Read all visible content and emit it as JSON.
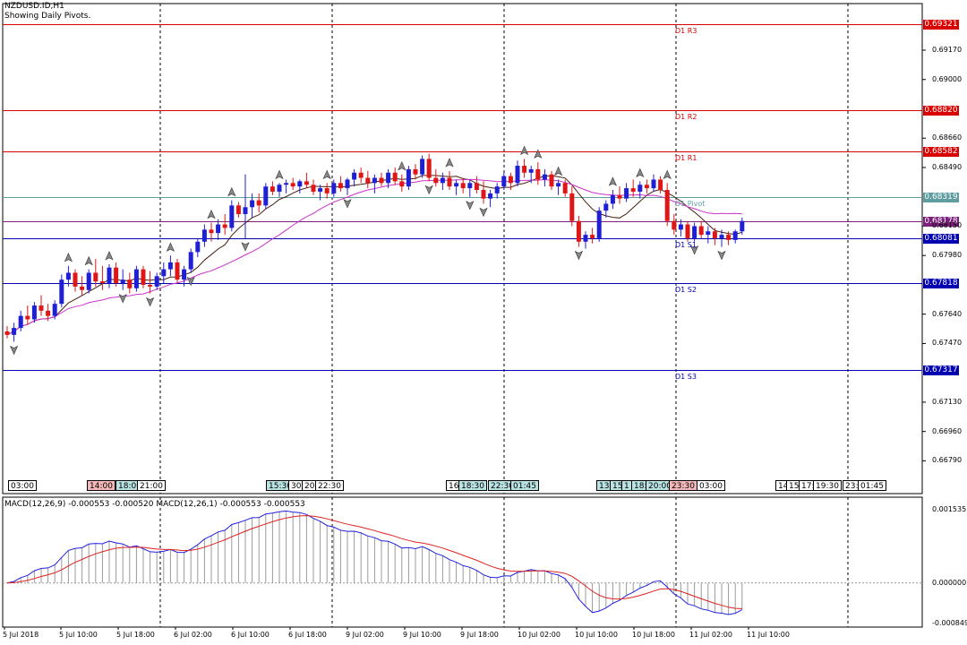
{
  "window": {
    "symbol": "NZDUSD.ID,H1",
    "subtitle": "Showing Daily Pivots."
  },
  "colors": {
    "bull": "#1f1fd6",
    "bear": "#e01515",
    "resistance": "#d90000",
    "support": "#0000b0",
    "pivot": "#5f9ea0",
    "ma_fast": "#4a2010",
    "ma_slow": "#cc33cc",
    "macd_line": "#2222dd",
    "signal_line": "#dd2222"
  },
  "pivots": [
    {
      "name": "D1 R3",
      "value": "0.69321",
      "price": 0.69321,
      "kind": "resistance"
    },
    {
      "name": "D1 R2",
      "value": "0.68820",
      "price": 0.6882,
      "kind": "resistance"
    },
    {
      "name": "D1 R1",
      "value": "0.68582",
      "price": 0.68582,
      "kind": "resistance"
    },
    {
      "name": "D1 Pivot",
      "value": "0.68319",
      "price": 0.68319,
      "kind": "pivot"
    },
    {
      "name": "",
      "value": "0.68178",
      "price": 0.68178,
      "kind": "current"
    },
    {
      "name": "D1 S1",
      "value": "0.68081",
      "price": 0.68081,
      "kind": "support"
    },
    {
      "name": "D1 S2",
      "value": "0.67818",
      "price": 0.67818,
      "kind": "support"
    },
    {
      "name": "D1 S3",
      "value": "0.67317",
      "price": 0.67317,
      "kind": "support"
    }
  ],
  "price_axis": [
    "0.69170",
    "0.69000",
    "0.68660",
    "0.68490",
    "0.68150",
    "0.67980",
    "0.67640",
    "0.67470",
    "0.67130",
    "0.66960",
    "0.66790"
  ],
  "time_boxes": [
    {
      "text": "03:00",
      "style": "white"
    },
    {
      "text": "14:00",
      "style": "red"
    },
    {
      "text": "18:00",
      "style": "cyan"
    },
    {
      "text": "21:00",
      "style": "white"
    },
    {
      "text": "15:30",
      "style": "cyan"
    },
    {
      "text": "30",
      "style": "white"
    },
    {
      "text": "20:",
      "style": "white"
    },
    {
      "text": "22:30",
      "style": "white"
    },
    {
      "text": "16:",
      "style": "white"
    },
    {
      "text": "18:30",
      "style": "cyan"
    },
    {
      "text": "22:30",
      "style": "cyan"
    },
    {
      "text": "01:45",
      "style": "cyan"
    },
    {
      "text": "13:",
      "style": "cyan"
    },
    {
      "text": "15:",
      "style": "cyan"
    },
    {
      "text": "1",
      "style": "cyan"
    },
    {
      "text": "18:",
      "style": "cyan"
    },
    {
      "text": "20:00",
      "style": "cyan"
    },
    {
      "text": "23:30",
      "style": "red"
    },
    {
      "text": "03:00",
      "style": "white"
    },
    {
      "text": "14",
      "style": "white"
    },
    {
      "text": "15",
      "style": "white"
    },
    {
      "text": "17:",
      "style": "white"
    },
    {
      "text": "19:30",
      "style": "white"
    },
    {
      "text": "23:",
      "style": "white"
    },
    {
      "text": "01:45",
      "style": "white"
    }
  ],
  "macd": {
    "label": "MACD(12,26,9) -0.000553 -0.000520 MACD(12,26,1) -0.000553 -0.000553",
    "axis": [
      "0.001535",
      "0.000000",
      "-0.000849"
    ]
  },
  "x_axis": [
    "5 Jul 2018",
    "5 Jul 10:00",
    "5 Jul 18:00",
    "6 Jul 02:00",
    "6 Jul 10:00",
    "6 Jul 18:00",
    "9 Jul 02:00",
    "9 Jul 10:00",
    "9 Jul 18:00",
    "10 Jul 02:00",
    "10 Jul 10:00",
    "10 Jul 18:00",
    "11 Jul 02:00",
    "11 Jul 10:00"
  ],
  "chart_data": {
    "type": "candlestick",
    "timeframe": "H1",
    "candles": [
      [
        0.6754,
        0.6757,
        0.675,
        0.6752
      ],
      [
        0.6752,
        0.6759,
        0.6748,
        0.6756
      ],
      [
        0.6756,
        0.6766,
        0.6754,
        0.6763
      ],
      [
        0.6763,
        0.6769,
        0.6758,
        0.6761
      ],
      [
        0.6761,
        0.6771,
        0.6759,
        0.6769
      ],
      [
        0.6769,
        0.6775,
        0.6763,
        0.6766
      ],
      [
        0.6766,
        0.677,
        0.676,
        0.6763
      ],
      [
        0.6763,
        0.6772,
        0.6761,
        0.677
      ],
      [
        0.677,
        0.6787,
        0.6768,
        0.6784
      ],
      [
        0.6784,
        0.6792,
        0.678,
        0.6788
      ],
      [
        0.6788,
        0.679,
        0.6777,
        0.678
      ],
      [
        0.678,
        0.6786,
        0.6775,
        0.6778
      ],
      [
        0.6778,
        0.679,
        0.6776,
        0.6788
      ],
      [
        0.6788,
        0.6796,
        0.678,
        0.6783
      ],
      [
        0.6783,
        0.6792,
        0.6778,
        0.6782
      ],
      [
        0.6782,
        0.6793,
        0.6779,
        0.6791
      ],
      [
        0.6791,
        0.6794,
        0.678,
        0.6782
      ],
      [
        0.6782,
        0.679,
        0.6778,
        0.6784
      ],
      [
        0.6784,
        0.6788,
        0.6776,
        0.6779
      ],
      [
        0.6779,
        0.6792,
        0.6777,
        0.679
      ],
      [
        0.679,
        0.6792,
        0.6779,
        0.6781
      ],
      [
        0.6781,
        0.6789,
        0.6776,
        0.678
      ],
      [
        0.678,
        0.6788,
        0.6778,
        0.6786
      ],
      [
        0.6786,
        0.6794,
        0.6782,
        0.679
      ],
      [
        0.679,
        0.6798,
        0.6786,
        0.6794
      ],
      [
        0.6794,
        0.6796,
        0.6782,
        0.6784
      ],
      [
        0.6784,
        0.6792,
        0.678,
        0.679
      ],
      [
        0.679,
        0.6802,
        0.6788,
        0.68
      ],
      [
        0.68,
        0.6808,
        0.6797,
        0.6806
      ],
      [
        0.6806,
        0.6816,
        0.6803,
        0.6813
      ],
      [
        0.6813,
        0.6817,
        0.6806,
        0.6811
      ],
      [
        0.6811,
        0.6819,
        0.6807,
        0.6816
      ],
      [
        0.6816,
        0.6822,
        0.681,
        0.6814
      ],
      [
        0.6814,
        0.683,
        0.6812,
        0.6827
      ],
      [
        0.6827,
        0.6829,
        0.682,
        0.6822
      ],
      [
        0.6822,
        0.6845,
        0.6808,
        0.6826
      ],
      [
        0.6826,
        0.6834,
        0.682,
        0.683
      ],
      [
        0.683,
        0.6834,
        0.6823,
        0.6827
      ],
      [
        0.6827,
        0.684,
        0.6825,
        0.6838
      ],
      [
        0.6838,
        0.6841,
        0.6833,
        0.6835
      ],
      [
        0.6835,
        0.684,
        0.6832,
        0.6839
      ],
      [
        0.6839,
        0.6842,
        0.6834,
        0.684
      ],
      [
        0.684,
        0.6843,
        0.6836,
        0.6838
      ],
      [
        0.6838,
        0.6842,
        0.6834,
        0.6841
      ],
      [
        0.6841,
        0.6846,
        0.6837,
        0.6839
      ],
      [
        0.6839,
        0.6842,
        0.6833,
        0.6835
      ],
      [
        0.6835,
        0.6839,
        0.683,
        0.6837
      ],
      [
        0.6837,
        0.684,
        0.6831,
        0.6834
      ],
      [
        0.6834,
        0.6842,
        0.6832,
        0.684
      ],
      [
        0.684,
        0.6844,
        0.6835,
        0.6837
      ],
      [
        0.6837,
        0.6843,
        0.6833,
        0.6842
      ],
      [
        0.6842,
        0.6848,
        0.6838,
        0.6846
      ],
      [
        0.6846,
        0.6849,
        0.684,
        0.6843
      ],
      [
        0.6843,
        0.6847,
        0.6837,
        0.684
      ],
      [
        0.684,
        0.6845,
        0.6834,
        0.6843
      ],
      [
        0.6843,
        0.6846,
        0.6838,
        0.684
      ],
      [
        0.684,
        0.6848,
        0.6837,
        0.6846
      ],
      [
        0.6846,
        0.6849,
        0.6839,
        0.6841
      ],
      [
        0.6841,
        0.6845,
        0.6835,
        0.6838
      ],
      [
        0.6838,
        0.685,
        0.6836,
        0.6848
      ],
      [
        0.6848,
        0.6851,
        0.6842,
        0.6845
      ],
      [
        0.6845,
        0.6856,
        0.6843,
        0.6854
      ],
      [
        0.6854,
        0.6857,
        0.6841,
        0.6843
      ],
      [
        0.6843,
        0.6848,
        0.6838,
        0.684
      ],
      [
        0.684,
        0.6846,
        0.6836,
        0.6843
      ],
      [
        0.6843,
        0.6847,
        0.6836,
        0.6838
      ],
      [
        0.6838,
        0.6842,
        0.6833,
        0.684
      ],
      [
        0.684,
        0.6843,
        0.6834,
        0.6837
      ],
      [
        0.6837,
        0.6842,
        0.6832,
        0.684
      ],
      [
        0.684,
        0.6844,
        0.6834,
        0.6836
      ],
      [
        0.6836,
        0.6841,
        0.6828,
        0.6831
      ],
      [
        0.6831,
        0.6836,
        0.6826,
        0.6834
      ],
      [
        0.6834,
        0.684,
        0.6831,
        0.6838
      ],
      [
        0.6838,
        0.6846,
        0.6836,
        0.6844
      ],
      [
        0.6844,
        0.6846,
        0.6836,
        0.684
      ],
      [
        0.684,
        0.6853,
        0.6838,
        0.685
      ],
      [
        0.685,
        0.6854,
        0.6843,
        0.6846
      ],
      [
        0.6846,
        0.685,
        0.684,
        0.6848
      ],
      [
        0.6848,
        0.6852,
        0.6839,
        0.6842
      ],
      [
        0.6842,
        0.6848,
        0.6838,
        0.6845
      ],
      [
        0.6845,
        0.6847,
        0.6836,
        0.6838
      ],
      [
        0.6838,
        0.6842,
        0.6833,
        0.684
      ],
      [
        0.684,
        0.6842,
        0.6832,
        0.6834
      ],
      [
        0.6834,
        0.6838,
        0.6815,
        0.6818
      ],
      [
        0.6818,
        0.6821,
        0.6803,
        0.6806
      ],
      [
        0.6806,
        0.6812,
        0.6802,
        0.681
      ],
      [
        0.681,
        0.6814,
        0.6805,
        0.6808
      ],
      [
        0.6808,
        0.6826,
        0.6806,
        0.6824
      ],
      [
        0.6824,
        0.683,
        0.682,
        0.6828
      ],
      [
        0.6828,
        0.6836,
        0.6825,
        0.6833
      ],
      [
        0.6833,
        0.6838,
        0.6828,
        0.6831
      ],
      [
        0.6831,
        0.684,
        0.6829,
        0.6837
      ],
      [
        0.6837,
        0.6842,
        0.6832,
        0.6835
      ],
      [
        0.6835,
        0.6841,
        0.6831,
        0.6839
      ],
      [
        0.6839,
        0.6842,
        0.6834,
        0.6837
      ],
      [
        0.6837,
        0.6845,
        0.6835,
        0.6842
      ],
      [
        0.6842,
        0.6844,
        0.6834,
        0.6836
      ],
      [
        0.6836,
        0.684,
        0.6815,
        0.6818
      ],
      [
        0.6818,
        0.6822,
        0.681,
        0.6813
      ],
      [
        0.6813,
        0.6819,
        0.6809,
        0.6816
      ],
      [
        0.6816,
        0.6818,
        0.6806,
        0.6808
      ],
      [
        0.6808,
        0.6817,
        0.6806,
        0.6815
      ],
      [
        0.6815,
        0.6818,
        0.6808,
        0.681
      ],
      [
        0.681,
        0.6815,
        0.6805,
        0.6812
      ],
      [
        0.6812,
        0.6814,
        0.6804,
        0.6808
      ],
      [
        0.6808,
        0.6813,
        0.6803,
        0.681
      ],
      [
        0.681,
        0.6812,
        0.6804,
        0.6807
      ],
      [
        0.6807,
        0.6813,
        0.6805,
        0.6812
      ],
      [
        0.6812,
        0.682,
        0.681,
        0.6818
      ]
    ],
    "fractals": [
      {
        "i": 1,
        "dir": "down"
      },
      {
        "i": 9,
        "dir": "up"
      },
      {
        "i": 12,
        "dir": "up"
      },
      {
        "i": 15,
        "dir": "up"
      },
      {
        "i": 17,
        "dir": "down"
      },
      {
        "i": 21,
        "dir": "down"
      },
      {
        "i": 24,
        "dir": "up"
      },
      {
        "i": 27,
        "dir": "down"
      },
      {
        "i": 30,
        "dir": "up"
      },
      {
        "i": 33,
        "dir": "up"
      },
      {
        "i": 35,
        "dir": "down"
      },
      {
        "i": 40,
        "dir": "up"
      },
      {
        "i": 47,
        "dir": "up"
      },
      {
        "i": 50,
        "dir": "down"
      },
      {
        "i": 58,
        "dir": "up"
      },
      {
        "i": 62,
        "dir": "down"
      },
      {
        "i": 65,
        "dir": "up"
      },
      {
        "i": 68,
        "dir": "down"
      },
      {
        "i": 70,
        "dir": "down"
      },
      {
        "i": 76,
        "dir": "up"
      },
      {
        "i": 78,
        "dir": "up"
      },
      {
        "i": 81,
        "dir": "up"
      },
      {
        "i": 84,
        "dir": "down"
      },
      {
        "i": 89,
        "dir": "up"
      },
      {
        "i": 93,
        "dir": "up"
      },
      {
        "i": 97,
        "dir": "up"
      },
      {
        "i": 101,
        "dir": "down"
      },
      {
        "i": 105,
        "dir": "down"
      }
    ],
    "ylim": [
      0.666,
      0.6944
    ],
    "macd_ylim": [
      -0.000849,
      0.001535
    ]
  }
}
